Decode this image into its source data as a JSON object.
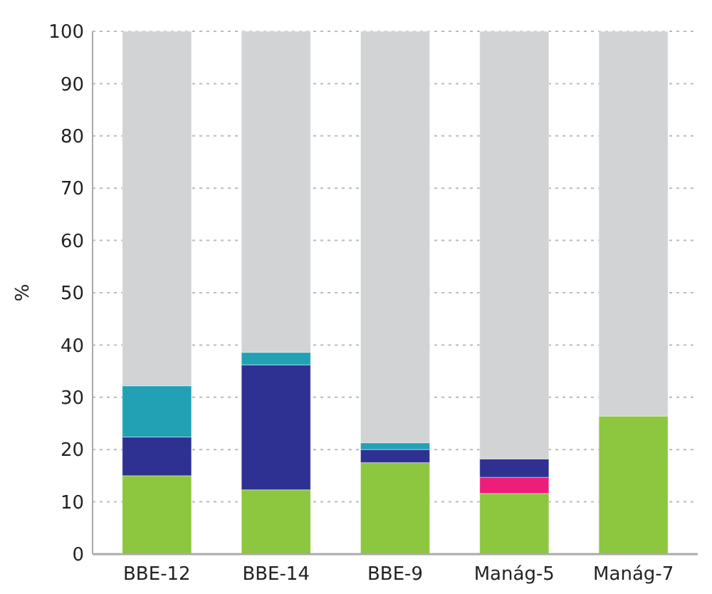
{
  "chart_data": {
    "type": "bar",
    "stacked": true,
    "ylabel": "%",
    "categories": [
      "BBE-12",
      "BBE-14",
      "BBE-9",
      "Manág-5",
      "Manág-7"
    ],
    "series": [
      {
        "color": "#8dc63f",
        "values": [
          15,
          12.3,
          17.5,
          11.6,
          26.4
        ]
      },
      {
        "color": "#ed1e79",
        "values": [
          0,
          0,
          0,
          3.1,
          0
        ]
      },
      {
        "color": "#2e3192",
        "values": [
          7.4,
          23.9,
          2.5,
          3.5,
          0
        ]
      },
      {
        "color": "#22a1b4",
        "values": [
          9.8,
          2.4,
          1.3,
          0,
          0
        ]
      },
      {
        "color": "#d1d3d4",
        "values": [
          67.8,
          61.4,
          78.7,
          81.8,
          73.6
        ]
      }
    ],
    "ylim": [
      0,
      100
    ],
    "yticks": [
      0,
      10,
      20,
      30,
      40,
      50,
      60,
      70,
      80,
      90,
      100
    ],
    "grid": "y"
  }
}
